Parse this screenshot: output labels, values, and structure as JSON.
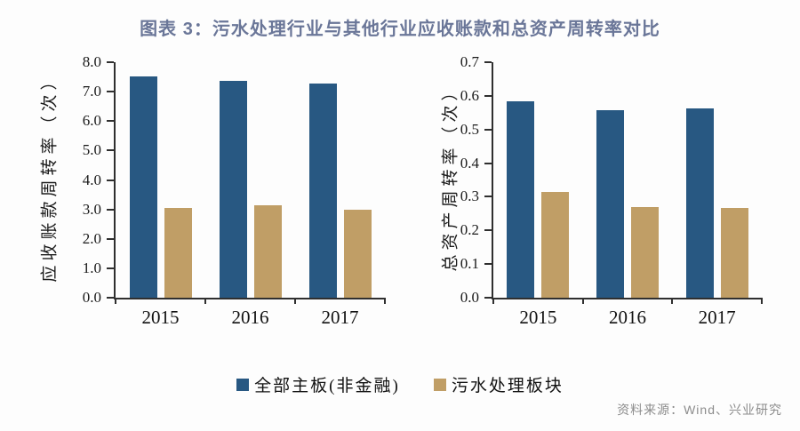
{
  "page": {
    "title": "图表 3：污水处理行业与其他行业应收账款和总资产周转率对比",
    "source": "资料来源：Wind、兴业研究"
  },
  "colors": {
    "title": "#6a7698",
    "axis": "#2f2f2f",
    "main_board_blue": "#285882",
    "sewage_tan": "#c09e66",
    "source_gray": "#8c8c8c"
  },
  "legend": {
    "items": [
      {
        "label": "全部主板(非金融)",
        "color": "#285882"
      },
      {
        "label": "污水处理板块",
        "color": "#c09e66"
      }
    ]
  },
  "chart_data": [
    {
      "type": "bar",
      "title": "",
      "ylabel": "应收账款周转率（次）",
      "xlabel": "",
      "categories": [
        "2015",
        "2016",
        "2017"
      ],
      "series": [
        {
          "name": "全部主板(非金融)",
          "color": "#285882",
          "values": [
            7.52,
            7.38,
            7.29
          ]
        },
        {
          "name": "污水处理板块",
          "color": "#c09e66",
          "values": [
            3.05,
            3.15,
            3.0
          ]
        }
      ],
      "ylim": [
        0,
        8
      ],
      "ytick_step": 1.0,
      "ytick_decimals": 1,
      "grid": false,
      "legend_position": "bottom-shared"
    },
    {
      "type": "bar",
      "title": "",
      "ylabel": "总资产周转率（次）",
      "xlabel": "",
      "categories": [
        "2015",
        "2016",
        "2017"
      ],
      "series": [
        {
          "name": "全部主板(非金融)",
          "color": "#285882",
          "values": [
            0.585,
            0.557,
            0.562
          ]
        },
        {
          "name": "污水处理板块",
          "color": "#c09e66",
          "values": [
            0.315,
            0.27,
            0.268
          ]
        }
      ],
      "ylim": [
        0,
        0.7
      ],
      "ytick_step": 0.1,
      "ytick_decimals": 1,
      "grid": false,
      "legend_position": "bottom-shared"
    }
  ]
}
